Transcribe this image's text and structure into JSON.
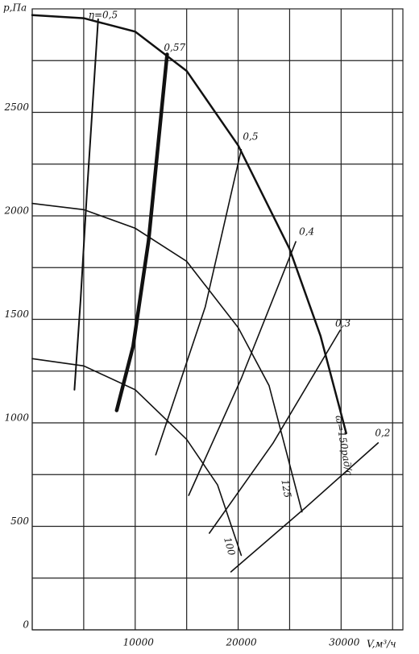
{
  "chart_data": {
    "type": "line",
    "y_label": "p,Па",
    "x_label": "V,м³/ч",
    "xlim": [
      0,
      36000
    ],
    "ylim": [
      0,
      3000
    ],
    "xticks": [
      10000,
      20000,
      30000
    ],
    "yticks": [
      0,
      500,
      1000,
      1500,
      2000,
      2500
    ],
    "xgrid": [
      0,
      5000,
      10000,
      15000,
      20000,
      25000,
      30000,
      35000
    ],
    "ygrid": [
      0,
      250,
      500,
      750,
      1000,
      1250,
      1500,
      1750,
      2000,
      2250,
      2500,
      2750
    ],
    "series": [
      {
        "name": "ω=150рад/с",
        "color": "#111",
        "width": 2.5,
        "x": [
          0,
          5000,
          10000,
          15000,
          20000,
          25000,
          28000,
          30500
        ],
        "values": [
          2970,
          2955,
          2890,
          2700,
          2340,
          1840,
          1420,
          950
        ]
      },
      {
        "name": "125",
        "color": "#111",
        "width": 1.6,
        "x": [
          0,
          5000,
          10000,
          15000,
          20000,
          23000,
          26200
        ],
        "values": [
          2060,
          2030,
          1940,
          1780,
          1460,
          1180,
          570
        ]
      },
      {
        "name": "100",
        "color": "#111",
        "width": 1.6,
        "x": [
          0,
          5000,
          10000,
          15000,
          18000,
          20300
        ],
        "values": [
          1310,
          1275,
          1160,
          920,
          700,
          360
        ]
      },
      {
        "name": "η=0,5",
        "color": "#111",
        "width": 2,
        "x": [
          4100,
          4700,
          5300,
          6400
        ],
        "values": [
          1160,
          1600,
          2100,
          2950
        ]
      },
      {
        "name": "0,57",
        "color": "#111",
        "width": 4.5,
        "x": [
          8200,
          9800,
          11300,
          13100
        ],
        "values": [
          1060,
          1370,
          1880,
          2780
        ]
      },
      {
        "name": "0,5",
        "color": "#111",
        "width": 1.6,
        "x": [
          12000,
          16800,
          20300
        ],
        "values": [
          845,
          1560,
          2320
        ]
      },
      {
        "name": "0,4",
        "color": "#111",
        "width": 1.6,
        "x": [
          15200,
          20300,
          25600
        ],
        "values": [
          650,
          1214,
          1875
        ]
      },
      {
        "name": "0,3",
        "color": "#111",
        "width": 1.6,
        "x": [
          17200,
          23400,
          29900
        ],
        "values": [
          467,
          903,
          1447
        ]
      },
      {
        "name": "0,2",
        "color": "#111",
        "width": 1.6,
        "x": [
          19300,
          26550,
          33600
        ],
        "values": [
          280,
          591,
          903
        ]
      }
    ]
  }
}
